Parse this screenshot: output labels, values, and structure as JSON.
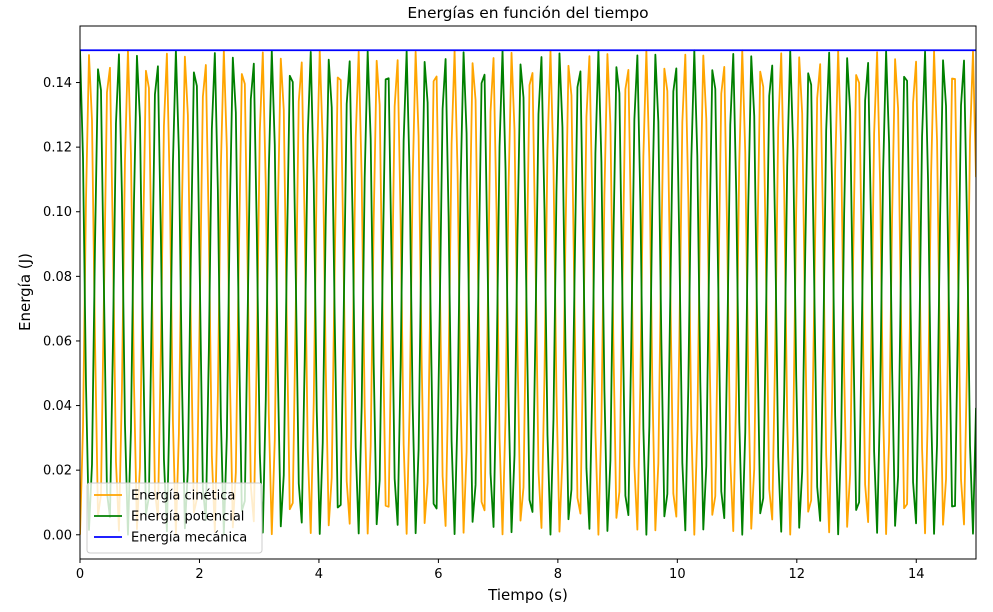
{
  "chart_data": {
    "type": "line",
    "title": "Energías en función del tiempo",
    "xlabel": "Tiempo (s)",
    "ylabel": "Energía (J)",
    "xlim": [
      0,
      15
    ],
    "ylim": [
      -0.0075,
      0.1575
    ],
    "x_ticks": [
      0,
      2,
      4,
      6,
      8,
      10,
      12,
      14
    ],
    "x_tick_labels": [
      "0",
      "2",
      "4",
      "6",
      "8",
      "10",
      "12",
      "14"
    ],
    "y_ticks": [
      0.0,
      0.02,
      0.04,
      0.06,
      0.08,
      0.1,
      0.12,
      0.14
    ],
    "y_tick_labels": [
      "0.00",
      "0.02",
      "0.04",
      "0.06",
      "0.08",
      "0.10",
      "0.12",
      "0.14"
    ],
    "grid": false,
    "legend_position": "bottom-left",
    "total_energy": 0.15,
    "frequency_hz": 1.5557,
    "x_range": [
      0,
      15
    ],
    "n_points": 300,
    "series": [
      {
        "name": "Energía cinética",
        "color": "#FFA500",
        "values": "0.15 * sin²(2π·1.5557·t), t ∈ [0, 15] s, 300 samples"
      },
      {
        "name": "Energía potencial",
        "color": "#008000",
        "values": "0.15 * cos²(2π·1.5557·t), t ∈ [0, 15] s, 300 samples"
      },
      {
        "name": "Energía mecánica",
        "color": "#0000FF",
        "values": "0.15 constant, t ∈ [0, 15] s"
      }
    ]
  }
}
